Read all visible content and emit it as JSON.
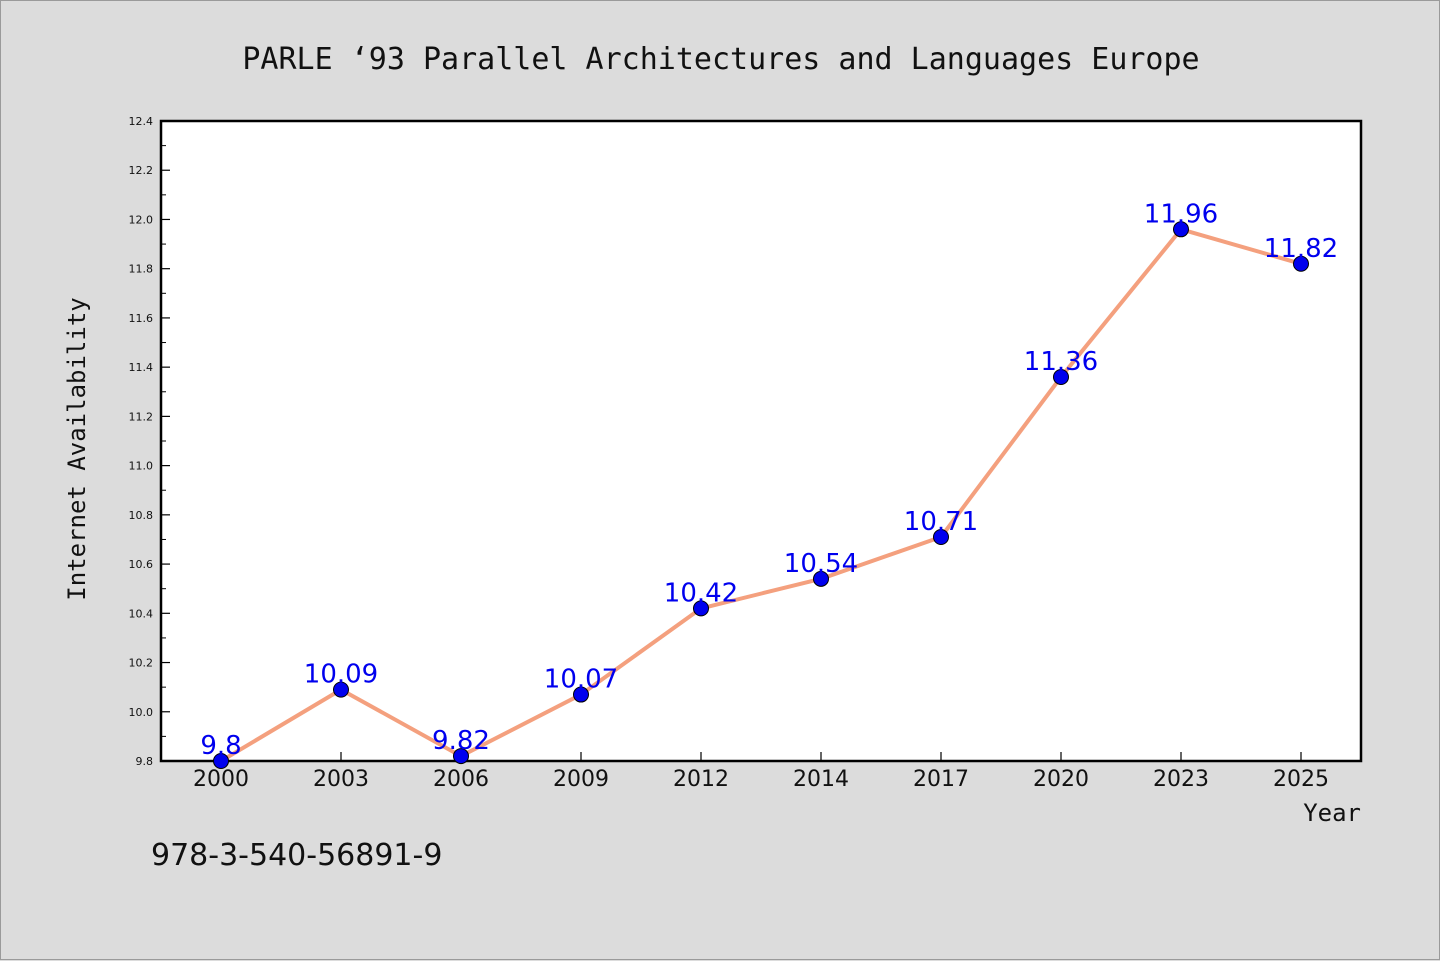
{
  "chart_data": {
    "type": "line",
    "title": "PARLE  ‘93 Parallel Architectures and Languages Europe",
    "xlabel": "Year",
    "ylabel": "Internet Availability",
    "categories": [
      "2000",
      "2003",
      "2006",
      "2009",
      "2012",
      "2014",
      "2017",
      "2020",
      "2023",
      "2025"
    ],
    "series": [
      {
        "values": [
          9.8,
          10.09,
          9.82,
          10.07,
          10.42,
          10.54,
          10.71,
          11.36,
          11.96,
          11.82
        ],
        "data_labels": [
          "9.8",
          "10.09",
          "9.82",
          "10.07",
          "10.42",
          "10.54",
          "10.71",
          "11.36",
          "11.96",
          "11.82"
        ]
      }
    ],
    "yticks": [
      "9.8",
      "10.0",
      "10.2",
      "10.4",
      "10.6",
      "10.8",
      "11.0",
      "11.2",
      "11.4",
      "11.6",
      "11.8",
      "12.0",
      "12.2",
      "12.4"
    ],
    "ylim": [
      9.8,
      12.4
    ],
    "grid": false,
    "legend": "none",
    "colors": {
      "line": "#f4a07e",
      "marker": "#0000ee",
      "label": "#0000ee",
      "background": "#dcdcdc",
      "plot_area": "#ffffff"
    }
  },
  "footer": {
    "isbn": "978-3-540-56891-9"
  }
}
